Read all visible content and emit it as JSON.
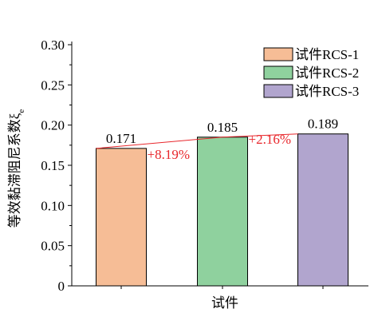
{
  "chart_data": {
    "type": "bar",
    "categories": [
      "试件RCS-1",
      "试件RCS-2",
      "试件RCS-3"
    ],
    "values": [
      0.171,
      0.185,
      0.189
    ],
    "data_labels": [
      "0.171",
      "0.185",
      "0.189"
    ],
    "colors": [
      "#F6BD96",
      "#8FD19E",
      "#B1A5CE"
    ],
    "xlabel": "试件",
    "ylabel": "等效黏滞阻尼系数ξ",
    "ylabel_subscript": "e",
    "ylim": [
      0,
      0.3
    ],
    "yticks": [
      "0",
      "0.05",
      "0.10",
      "0.15",
      "0.20",
      "0.25",
      "0.30"
    ],
    "grid": false,
    "legend_position": "top-right",
    "annotations": [
      {
        "text": "+8.19%",
        "color": "#E8262B"
      },
      {
        "text": "+2.16%",
        "color": "#E8262B"
      }
    ],
    "trend_line_color": "#E8262B"
  }
}
